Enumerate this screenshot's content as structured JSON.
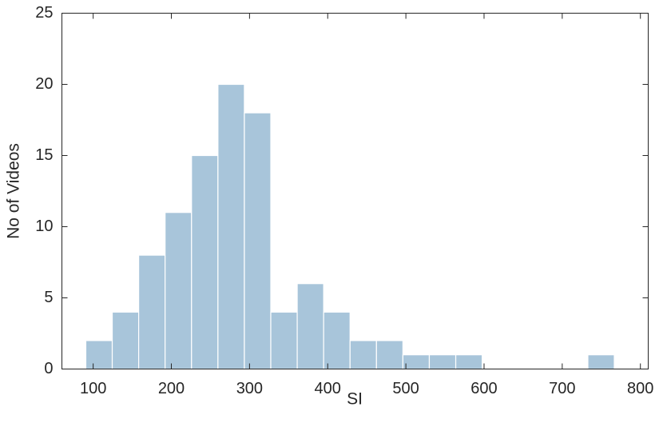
{
  "chart_data": {
    "type": "bar",
    "subtype": "histogram",
    "bin_edges": [
      90.6,
      124.4,
      158.2,
      192.0,
      225.8,
      259.6,
      293.4,
      327.2,
      361.0,
      394.8,
      428.6,
      462.4,
      496.2,
      530.0,
      563.8,
      597.6,
      631.4,
      665.2,
      699.0,
      732.8,
      766.6
    ],
    "values": [
      2,
      4,
      8,
      11,
      15,
      20,
      18,
      4,
      6,
      4,
      2,
      2,
      1,
      1,
      1,
      0,
      0,
      0,
      0,
      1
    ],
    "title": "",
    "xlabel": "SI",
    "ylabel": "No of Videos",
    "xlim": [
      60,
      810
    ],
    "ylim": [
      0,
      25
    ],
    "xticks": [
      100,
      200,
      300,
      400,
      500,
      600,
      700,
      800
    ],
    "yticks": [
      0,
      5,
      10,
      15,
      20,
      25
    ],
    "bar_color": "#a8c5da",
    "grid": false,
    "legend": "none"
  }
}
